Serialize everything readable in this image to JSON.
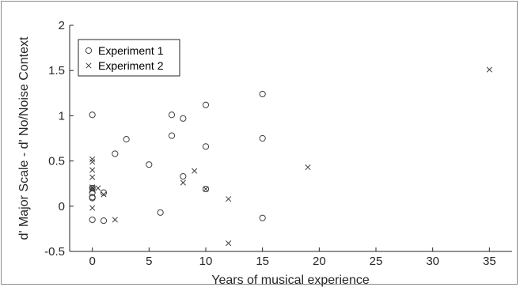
{
  "chart_data": {
    "type": "scatter",
    "title": "",
    "xlabel": "Years of musical experience",
    "ylabel": "d' Major Scale - d' No/Noise Context",
    "xlim": [
      -2,
      37
    ],
    "ylim": [
      -0.5,
      2
    ],
    "xticks": [
      0,
      5,
      10,
      15,
      20,
      25,
      30,
      35
    ],
    "yticks": [
      -0.5,
      0,
      0.5,
      1,
      1.5,
      2
    ],
    "xtick_labels": [
      "0",
      "5",
      "10",
      "15",
      "20",
      "25",
      "30",
      "35"
    ],
    "ytick_labels": [
      "-0.5",
      "0",
      "0.5",
      "1",
      "1.5",
      "2"
    ],
    "grid": false,
    "legend_position": "top-left",
    "series": [
      {
        "name": "Experiment 1",
        "marker": "circle",
        "color": "#404040",
        "points": [
          {
            "x": 0,
            "y": 1.01
          },
          {
            "x": 0,
            "y": 0.2
          },
          {
            "x": 0,
            "y": 0.15
          },
          {
            "x": 0,
            "y": 0.1
          },
          {
            "x": 0,
            "y": 0.09
          },
          {
            "x": 0,
            "y": -0.15
          },
          {
            "x": 1,
            "y": 0.15
          },
          {
            "x": 1,
            "y": -0.16
          },
          {
            "x": 2,
            "y": 0.58
          },
          {
            "x": 3,
            "y": 0.74
          },
          {
            "x": 5,
            "y": 0.46
          },
          {
            "x": 6,
            "y": -0.07
          },
          {
            "x": 7,
            "y": 1.01
          },
          {
            "x": 7,
            "y": 0.78
          },
          {
            "x": 8,
            "y": 0.97
          },
          {
            "x": 8,
            "y": 0.33
          },
          {
            "x": 10,
            "y": 1.12
          },
          {
            "x": 10,
            "y": 0.66
          },
          {
            "x": 10,
            "y": 0.19
          },
          {
            "x": 15,
            "y": 1.24
          },
          {
            "x": 15,
            "y": 0.75
          },
          {
            "x": 15,
            "y": -0.13
          }
        ]
      },
      {
        "name": "Experiment 2",
        "marker": "x",
        "color": "#404040",
        "points": [
          {
            "x": 0,
            "y": 0.52
          },
          {
            "x": 0,
            "y": 0.49
          },
          {
            "x": 0,
            "y": 0.4
          },
          {
            "x": 0,
            "y": 0.32
          },
          {
            "x": 0,
            "y": 0.21
          },
          {
            "x": 0,
            "y": 0.2
          },
          {
            "x": 0,
            "y": 0.18
          },
          {
            "x": 0,
            "y": -0.02
          },
          {
            "x": 0.5,
            "y": 0.2
          },
          {
            "x": 1,
            "y": 0.13
          },
          {
            "x": 2,
            "y": -0.15
          },
          {
            "x": 8,
            "y": 0.26
          },
          {
            "x": 9,
            "y": 0.39
          },
          {
            "x": 10,
            "y": 0.19
          },
          {
            "x": 12,
            "y": 0.08
          },
          {
            "x": 12,
            "y": -0.41
          },
          {
            "x": 19,
            "y": 0.43
          },
          {
            "x": 35,
            "y": 1.51
          }
        ]
      }
    ]
  }
}
